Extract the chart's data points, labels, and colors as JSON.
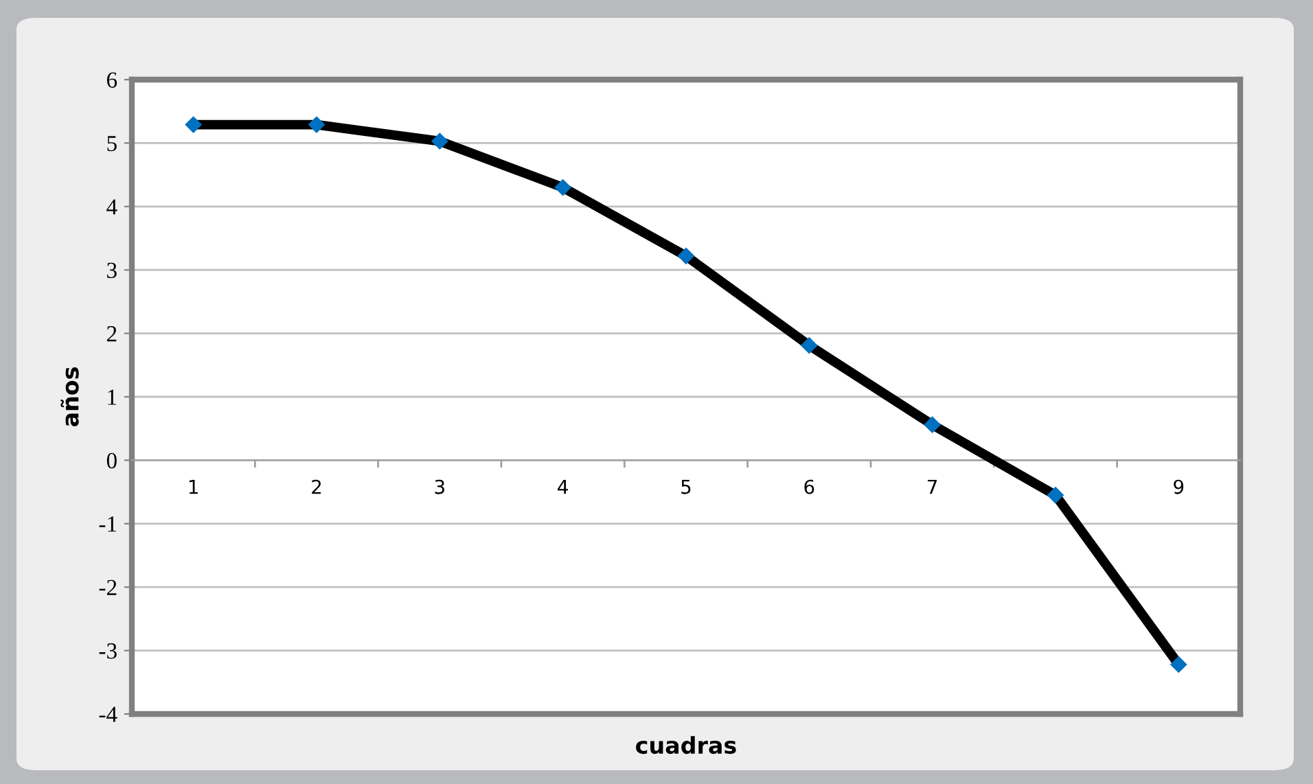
{
  "chart_data": {
    "type": "line",
    "xlabel": "cuadras",
    "ylabel": "años",
    "categories": [
      "1",
      "2",
      "3",
      "4",
      "5",
      "6",
      "7",
      null,
      "9"
    ],
    "series": [
      {
        "color": "#000000",
        "colors": [
          "#0070c0",
          "#0070c0",
          "#0070c0",
          "#0070c0",
          "#0070c0",
          "#0070c0",
          "#0070c0",
          "#0070c0",
          "#0070c0"
        ],
        "values": [
          5.29,
          5.29,
          5.03,
          4.3,
          3.22,
          1.81,
          0.56,
          -0.55,
          -3.22
        ]
      }
    ],
    "ylim": [
      -4,
      6
    ],
    "yticks": [
      -4,
      -3,
      -2,
      -1,
      0,
      1,
      2,
      3,
      4,
      5,
      6
    ],
    "grid": "y",
    "marker": "diamond",
    "line_style": "solid"
  }
}
